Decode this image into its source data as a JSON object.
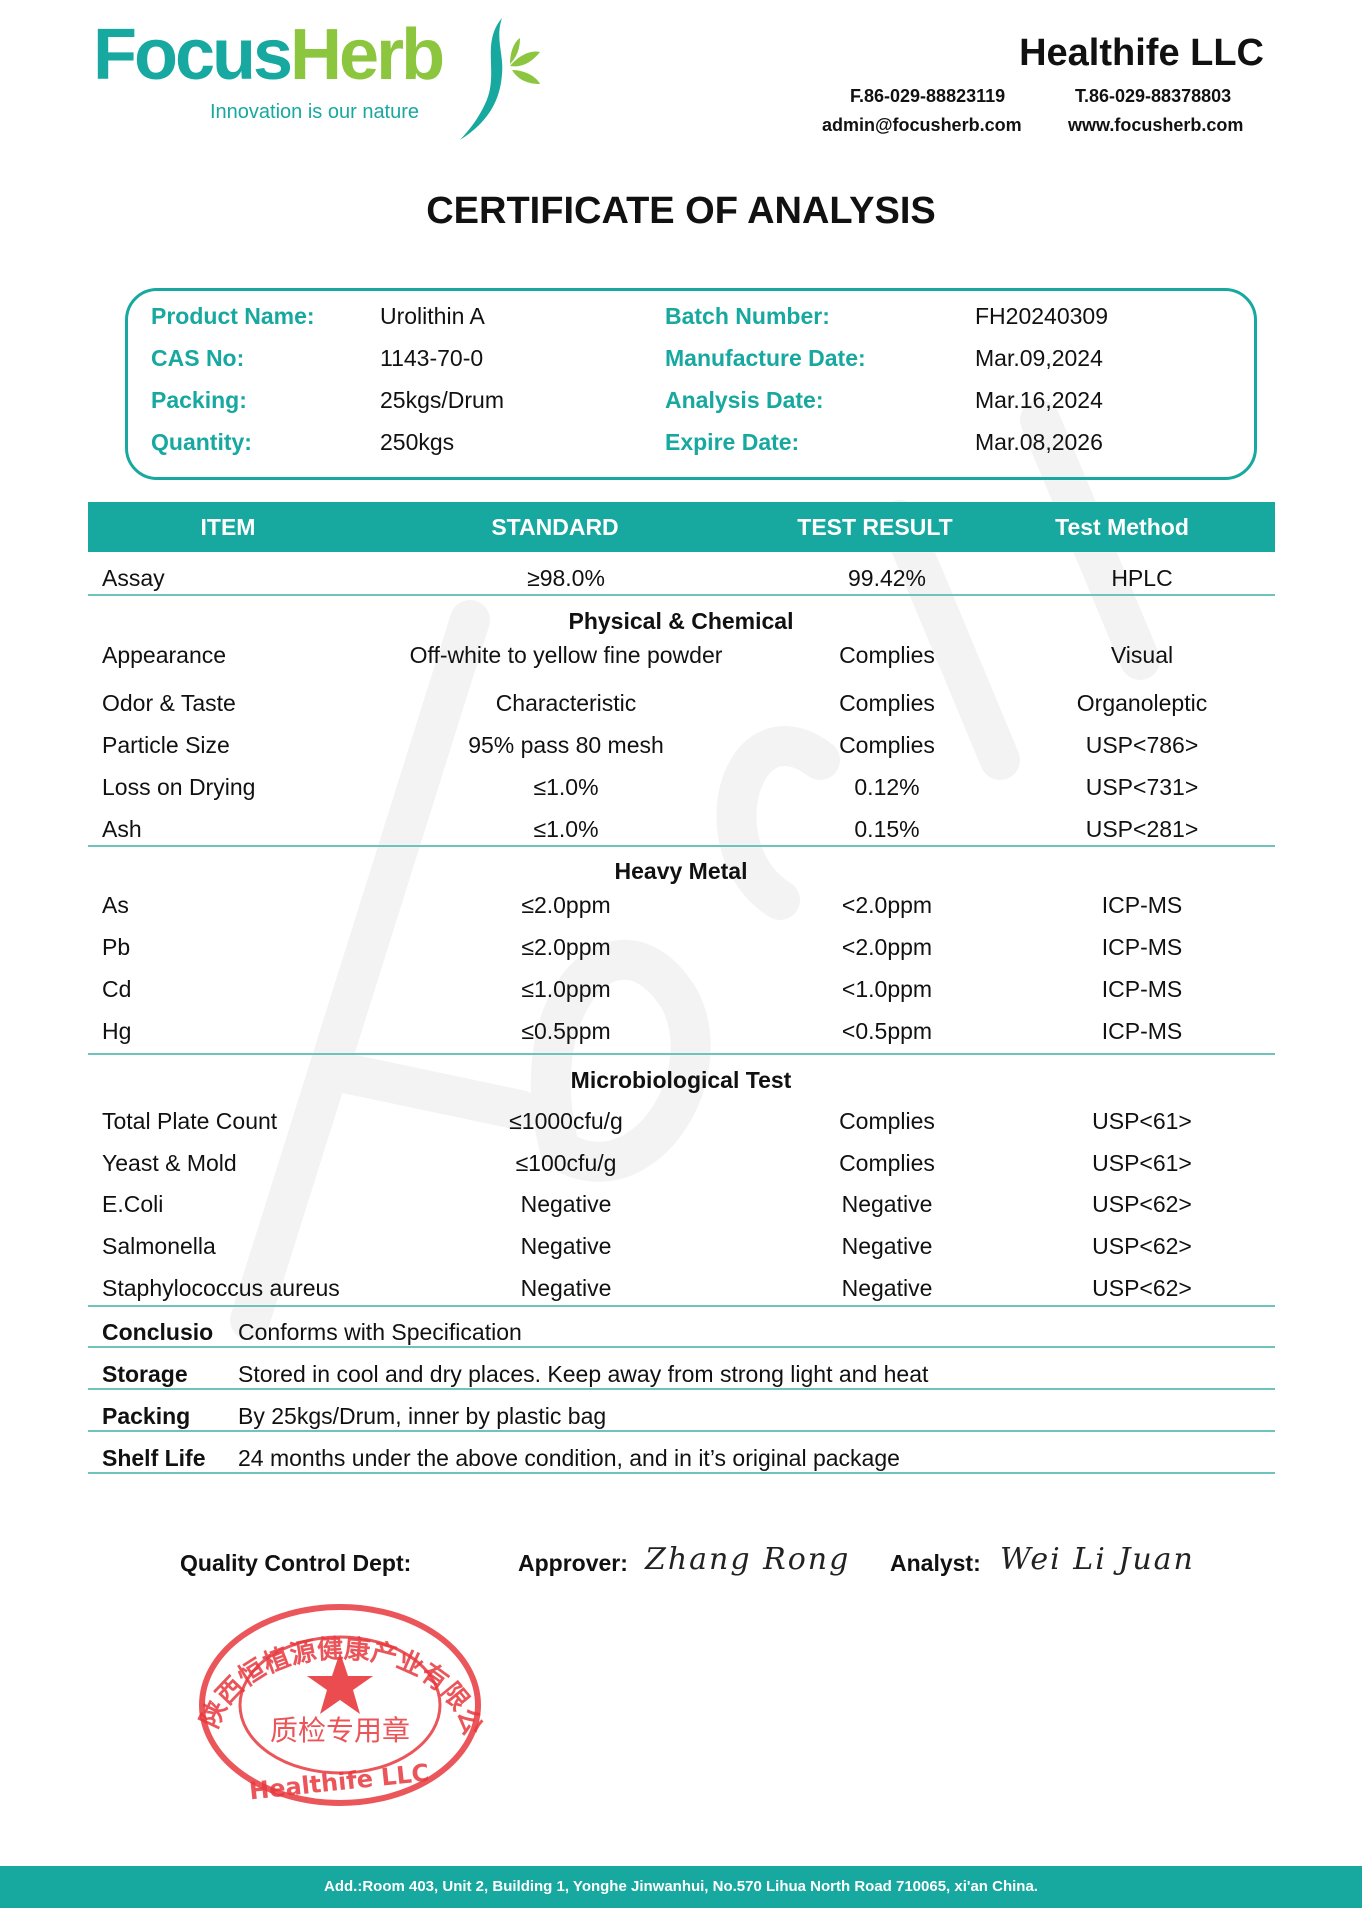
{
  "brand": {
    "logo_focus": "Focus",
    "logo_herb": "Herb",
    "tagline": "Innovation is our nature",
    "watermark": "FocusHerb",
    "colors": {
      "teal": "#17a8a0",
      "green": "#8cc63f",
      "stamp_red": "#e8383d"
    }
  },
  "company": {
    "name": "Healthife  LLC",
    "fax": "F.86-029-88823119",
    "tel": "T.86-029-88378803",
    "email": "admin@focusherb.com",
    "website": "www.focusherb.com"
  },
  "title": "CERTIFICATE OF ANALYSIS",
  "info": {
    "left": [
      {
        "label": "Product Name:",
        "value": "Urolithin A"
      },
      {
        "label": "CAS No:",
        "value": "1143-70-0"
      },
      {
        "label": "Packing:",
        "value": "25kgs/Drum"
      },
      {
        "label": "Quantity:",
        "value": "250kgs"
      }
    ],
    "right": [
      {
        "label": "Batch Number:",
        "value": "FH20240309"
      },
      {
        "label": "Manufacture Date:",
        "value": "Mar.09,2024"
      },
      {
        "label": "Analysis Date:",
        "value": "Mar.16,2024"
      },
      {
        "label": "Expire Date:",
        "value": "Mar.08,2026"
      }
    ]
  },
  "table": {
    "headers": [
      "ITEM",
      "STANDARD",
      "TEST RESULT",
      "Test Method"
    ],
    "assay": {
      "item": "Assay",
      "standard": "≥98.0%",
      "result": "99.42%",
      "method": "HPLC"
    },
    "sections": [
      {
        "title": "Physical & Chemical",
        "rows": [
          {
            "item": "Appearance",
            "standard": "Off-white to yellow fine powder",
            "result": "Complies",
            "method": "Visual"
          },
          {
            "item": "Odor & Taste",
            "standard": "Characteristic",
            "result": "Complies",
            "method": "Organoleptic"
          },
          {
            "item": "Particle Size",
            "standard": "95% pass 80 mesh",
            "result": "Complies",
            "method": "USP<786>"
          },
          {
            "item": "Loss on Drying",
            "standard": "≤1.0%",
            "result": "0.12%",
            "method": "USP<731>"
          },
          {
            "item": "Ash",
            "standard": "≤1.0%",
            "result": "0.15%",
            "method": "USP<281>"
          }
        ]
      },
      {
        "title": "Heavy Metal",
        "rows": [
          {
            "item": "As",
            "standard": "≤2.0ppm",
            "result": "<2.0ppm",
            "method": "ICP-MS"
          },
          {
            "item": "Pb",
            "standard": "≤2.0ppm",
            "result": "<2.0ppm",
            "method": "ICP-MS"
          },
          {
            "item": "Cd",
            "standard": "≤1.0ppm",
            "result": "<1.0ppm",
            "method": "ICP-MS"
          },
          {
            "item": "Hg",
            "standard": "≤0.5ppm",
            "result": "<0.5ppm",
            "method": "ICP-MS"
          }
        ]
      },
      {
        "title": "Microbiological Test",
        "rows": [
          {
            "item": "Total Plate Count",
            "standard": "≤1000cfu/g",
            "result": "Complies",
            "method": "USP<61>"
          },
          {
            "item": "Yeast & Mold",
            "standard": "≤100cfu/g",
            "result": "Complies",
            "method": "USP<61>"
          },
          {
            "item": "E.Coli",
            "standard": "Negative",
            "result": "Negative",
            "method": "USP<62>"
          },
          {
            "item": "Salmonella",
            "standard": "Negative",
            "result": "Negative",
            "method": "USP<62>"
          },
          {
            "item": "Staphylococcus aureus",
            "standard": "Negative",
            "result": "Negative",
            "method": "USP<62>"
          }
        ]
      }
    ]
  },
  "notes": [
    {
      "label": "Conclusio",
      "text": "Conforms with Specification"
    },
    {
      "label": "Storage",
      "text": "Stored in cool and dry places. Keep away from strong light and heat"
    },
    {
      "label": "Packing",
      "text": "By 25kgs/Drum, inner by plastic bag"
    },
    {
      "label": "Shelf Life",
      "text": "24 months under the above condition, and in it’s original package"
    }
  ],
  "signatures": {
    "qc_label": "Quality Control Dept:",
    "approver_label": "Approver:",
    "approver_signature": "Zhang Rong",
    "analyst_label": "Analyst:",
    "analyst_signature": "Wei Li Juan",
    "stamp": {
      "outer_text": "陕西恒植源健康产业有限公司",
      "center_text": "质检专用章",
      "bottom_text": "Healthife LLC"
    }
  },
  "footer": "Add.:Room 403, Unit 2, Building 1, Yonghe Jinwanhui, No.570 Lihua North Road 710065, xi'an China."
}
